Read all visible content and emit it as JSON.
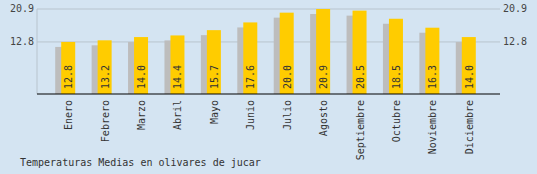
{
  "chart_data": {
    "type": "bar",
    "title": "Temperaturas Medias en olivares de jucar",
    "categories": [
      "Enero",
      "Febrero",
      "Marzo",
      "Abril",
      "Mayo",
      "Junio",
      "Julio",
      "Agosto",
      "Septiembre",
      "Octubre",
      "Noviembre",
      "Diciembre"
    ],
    "values": [
      12.8,
      13.2,
      14.0,
      14.4,
      15.7,
      17.6,
      20.0,
      20.9,
      20.5,
      18.5,
      16.3,
      14.0
    ],
    "value_labels": [
      "12.8",
      "13.2",
      "14.0",
      "14.4",
      "15.7",
      "17.6",
      "20.0",
      "20.9",
      "20.5",
      "18.5",
      "16.3",
      "14.0"
    ],
    "color": "#ffcc00",
    "ylim": [
      0,
      20.9
    ],
    "yticks": [
      12.8,
      20.9
    ],
    "grid": true,
    "data_labels": true
  }
}
